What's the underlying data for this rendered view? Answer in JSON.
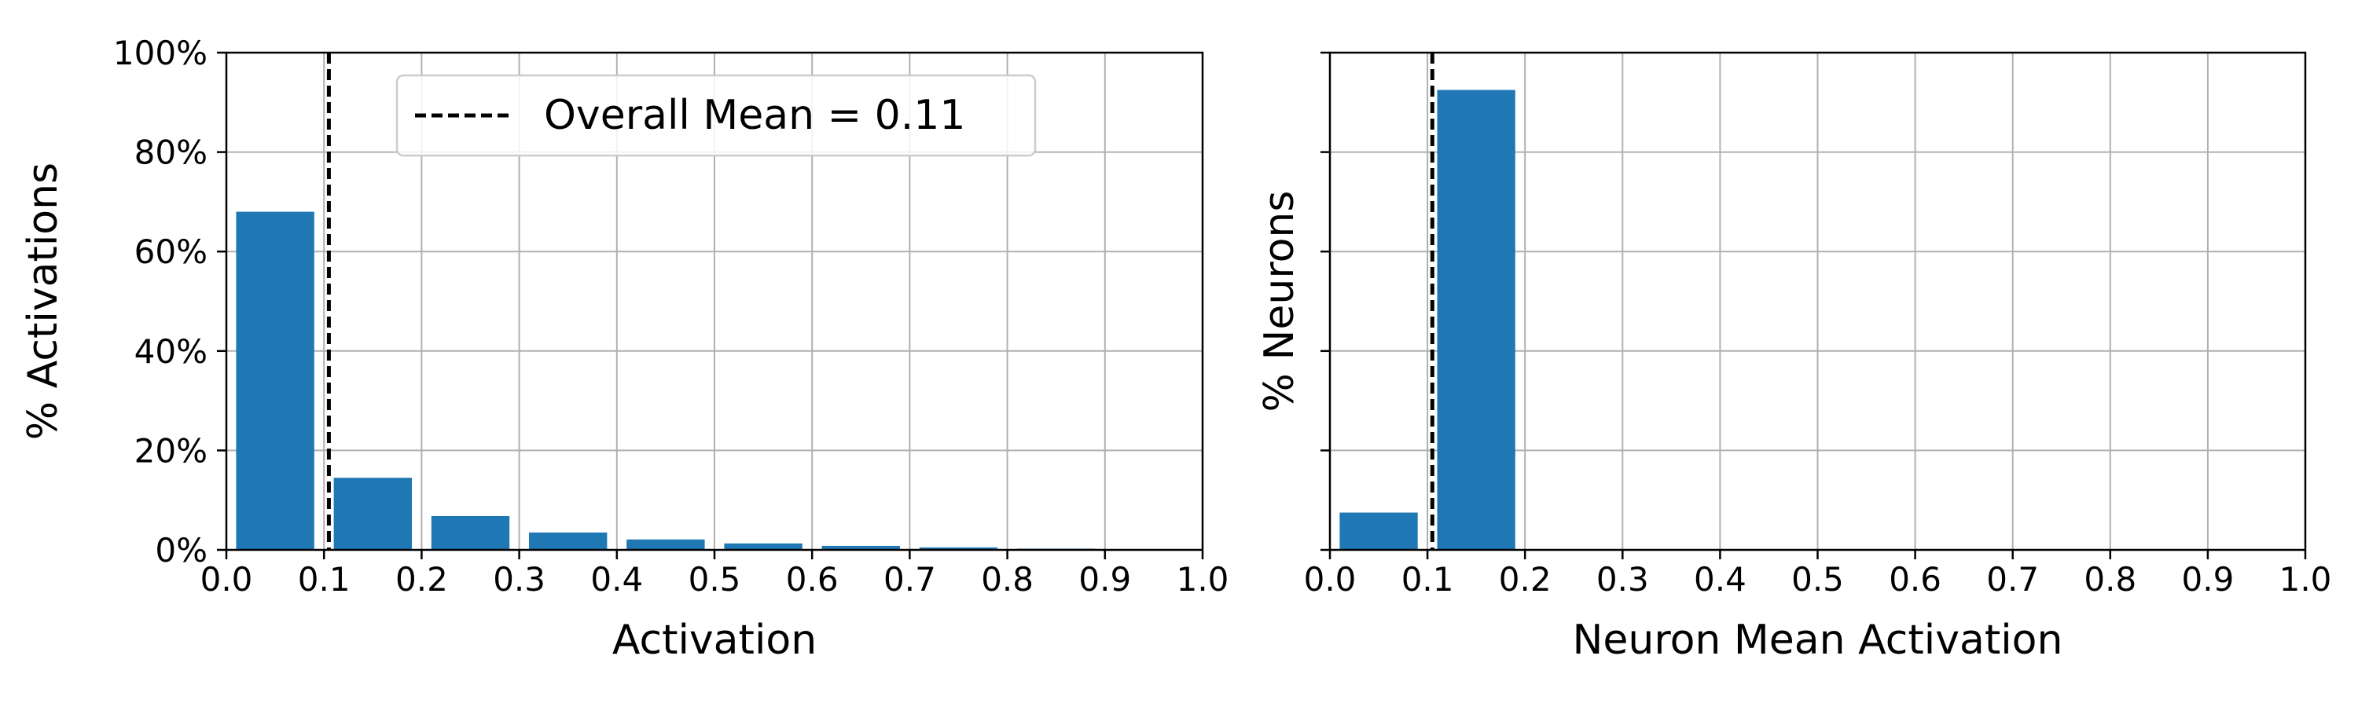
{
  "chart_data": [
    {
      "type": "bar",
      "xlabel": "Activation",
      "ylabel": "% Activations",
      "xlim": [
        0,
        1
      ],
      "ylim": [
        0,
        100
      ],
      "x_tick_labels": [
        "0.0",
        "0.1",
        "0.2",
        "0.3",
        "0.4",
        "0.5",
        "0.6",
        "0.7",
        "0.8",
        "0.9",
        "1.0"
      ],
      "y_tick_labels": [
        "0%",
        "20%",
        "40%",
        "60%",
        "80%",
        "100%"
      ],
      "grid": true,
      "bars": [
        {
          "x0": 0.0,
          "x1": 0.1,
          "value": 68.0
        },
        {
          "x0": 0.1,
          "x1": 0.2,
          "value": 14.5
        },
        {
          "x0": 0.2,
          "x1": 0.3,
          "value": 6.8
        },
        {
          "x0": 0.3,
          "x1": 0.4,
          "value": 3.5
        },
        {
          "x0": 0.4,
          "x1": 0.5,
          "value": 2.1
        },
        {
          "x0": 0.5,
          "x1": 0.6,
          "value": 1.3
        },
        {
          "x0": 0.6,
          "x1": 0.7,
          "value": 0.8
        },
        {
          "x0": 0.7,
          "x1": 0.8,
          "value": 0.5
        },
        {
          "x0": 0.8,
          "x1": 0.9,
          "value": 0.25
        },
        {
          "x0": 0.9,
          "x1": 1.0,
          "value": 0.1
        }
      ],
      "mean_line": {
        "x": 0.105,
        "style": "dashed"
      },
      "legend": {
        "label": "Overall Mean = 0.11",
        "placement": "top-center"
      }
    },
    {
      "type": "bar",
      "xlabel": "Neuron Mean Activation",
      "ylabel": "% Neurons",
      "xlim": [
        0,
        1
      ],
      "ylim": [
        0,
        100
      ],
      "shared_y": true,
      "x_tick_labels": [
        "0.0",
        "0.1",
        "0.2",
        "0.3",
        "0.4",
        "0.5",
        "0.6",
        "0.7",
        "0.8",
        "0.9",
        "1.0"
      ],
      "grid": true,
      "bars": [
        {
          "x0": 0.0,
          "x1": 0.1,
          "value": 7.5
        },
        {
          "x0": 0.1,
          "x1": 0.2,
          "value": 92.5
        }
      ],
      "mean_line": {
        "x": 0.105,
        "style": "dashed"
      }
    }
  ],
  "colors": {
    "bar": "#1f77b4",
    "grid": "#b0b0b0",
    "axis": "#000000",
    "mean_line": "#000000"
  }
}
